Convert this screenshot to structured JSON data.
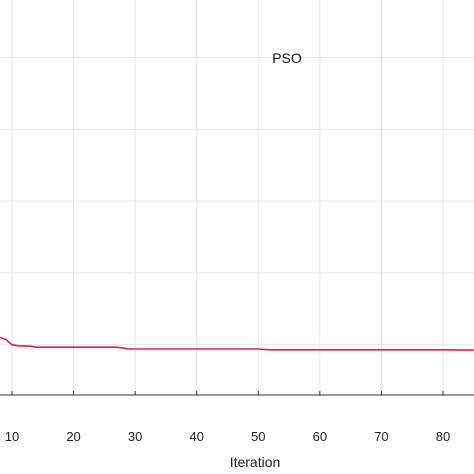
{
  "chart_data": {
    "type": "line",
    "title": "",
    "xlabel": "Iteration",
    "ylabel": "",
    "annotation": "PSO",
    "grid": true,
    "xlim": [
      8,
      85
    ],
    "ylim": [
      0,
      1.1
    ],
    "x_ticks": [
      10,
      20,
      30,
      40,
      50,
      60,
      70,
      80
    ],
    "y_grid_values": [
      0.14,
      0.34,
      0.54,
      0.74,
      0.94
    ],
    "series": [
      {
        "color": "#e0204a",
        "x": [
          8,
          9,
          10,
          11,
          13,
          14,
          15,
          20,
          27,
          28,
          29,
          30,
          40,
          50,
          51,
          52,
          60,
          70,
          80,
          85
        ],
        "y": [
          0.16,
          0.155,
          0.14,
          0.137,
          0.136,
          0.133,
          0.133,
          0.133,
          0.133,
          0.131,
          0.128,
          0.128,
          0.128,
          0.128,
          0.127,
          0.126,
          0.126,
          0.126,
          0.126,
          0.125
        ]
      }
    ]
  }
}
